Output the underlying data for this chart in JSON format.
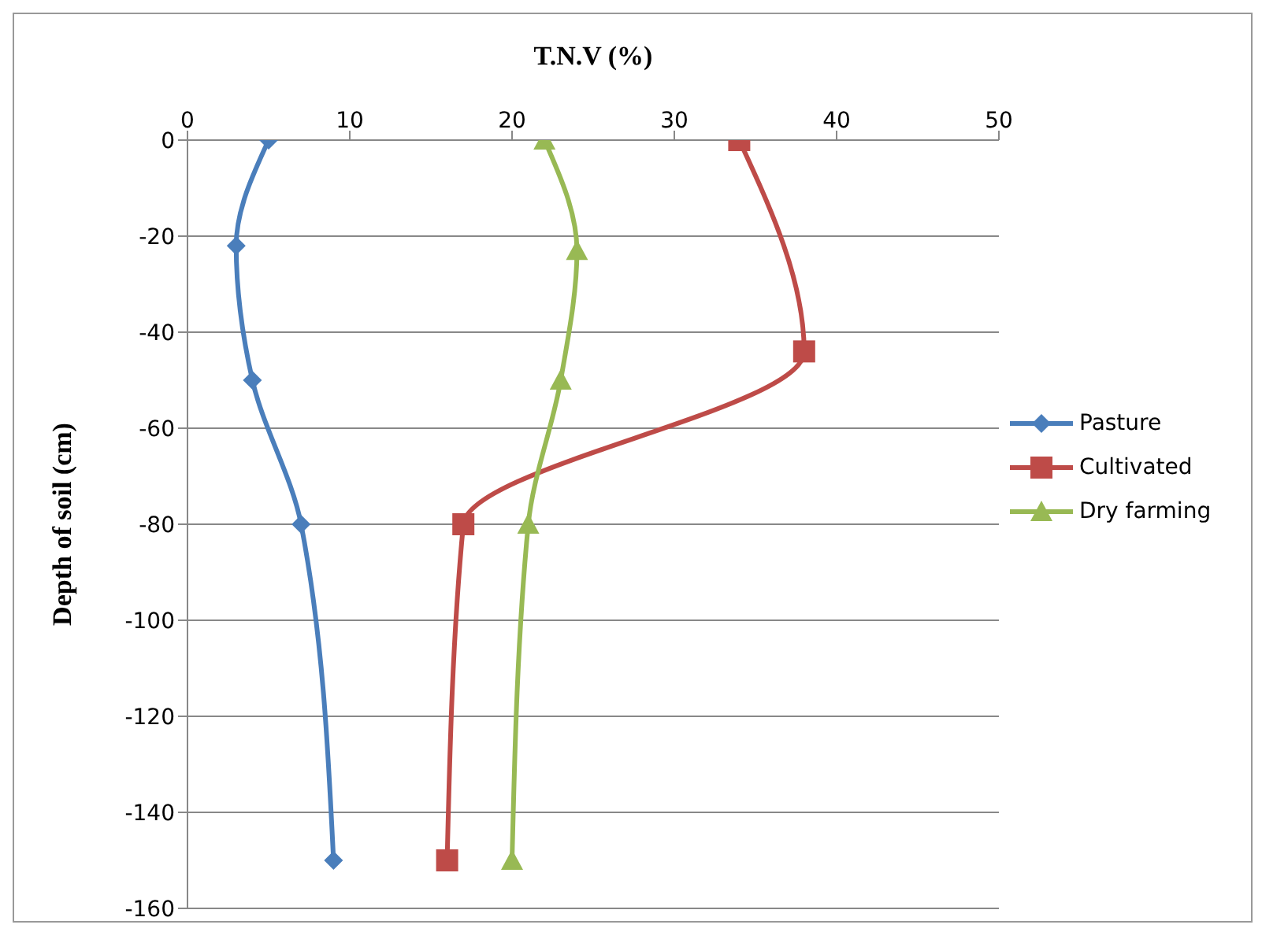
{
  "chart_data": {
    "type": "line",
    "xlabel": "T.N.V (%)",
    "ylabel": "Depth of soil (cm)",
    "xlim": [
      0,
      50
    ],
    "xticks": [
      0,
      10,
      20,
      30,
      40,
      50
    ],
    "ylim": [
      -160,
      0
    ],
    "yticks": [
      -160,
      -140,
      -120,
      -100,
      -80,
      -60,
      -40,
      -20,
      0
    ],
    "grid": "y",
    "legend": "right",
    "series": [
      {
        "name": "Pasture",
        "color": "#4a7ebb",
        "marker": "diamond",
        "x": [
          5,
          3,
          4,
          7,
          9
        ],
        "values": [
          0,
          -22,
          -50,
          -80,
          -150
        ]
      },
      {
        "name": "Cultivated",
        "color": "#be4b48",
        "marker": "square",
        "x": [
          34,
          38,
          17,
          16
        ],
        "values": [
          0,
          -44,
          -80,
          -150
        ]
      },
      {
        "name": "Dry farming",
        "color": "#98b954",
        "marker": "triangle",
        "x": [
          22,
          24,
          23,
          21,
          20
        ],
        "values": [
          0,
          -23,
          -50,
          -80,
          -150
        ]
      }
    ]
  }
}
